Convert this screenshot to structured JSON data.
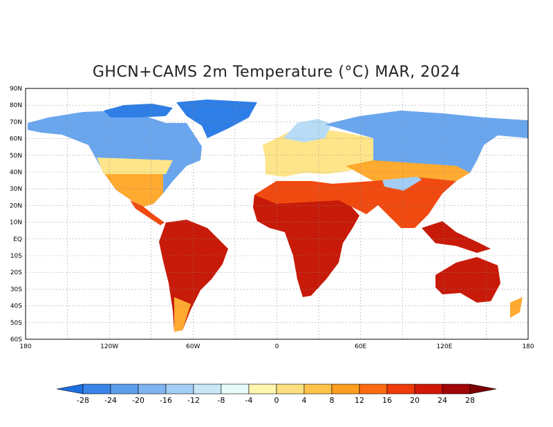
{
  "title": "GHCN+CAMS 2m Temperature (°C) MAR, 2024",
  "lat_labels": [
    "90N",
    "80N",
    "70N",
    "60N",
    "50N",
    "40N",
    "30N",
    "20N",
    "10N",
    "EQ",
    "10S",
    "20S",
    "30S",
    "40S",
    "50S",
    "60S"
  ],
  "lon_labels": [
    "180",
    "120W",
    "60W",
    "0",
    "60E",
    "120E",
    "180"
  ],
  "colorbar": {
    "levels": [
      "-28",
      "-24",
      "-20",
      "-16",
      "-12",
      "-8",
      "-4",
      "0",
      "4",
      "8",
      "12",
      "16",
      "20",
      "24",
      "28"
    ],
    "colors": [
      "#1e6fe0",
      "#3a85e8",
      "#5c9ced",
      "#7fb3f1",
      "#a4cdf5",
      "#c8e8f8",
      "#e8fbfb",
      "#fff6b0",
      "#ffe080",
      "#ffc24a",
      "#ff9e1e",
      "#ff6a10",
      "#f03a0a",
      "#d01808",
      "#a00606",
      "#7a0000"
    ]
  },
  "map_colors": {
    "arctic": "#2f7ee6",
    "cold": "#6aa6ee",
    "cool": "#b8dcf6",
    "mild": "#ffe58a",
    "warm": "#ffaa30",
    "hot": "#f04a10",
    "very_hot": "#c81a08",
    "ocean": "#ffffff"
  }
}
